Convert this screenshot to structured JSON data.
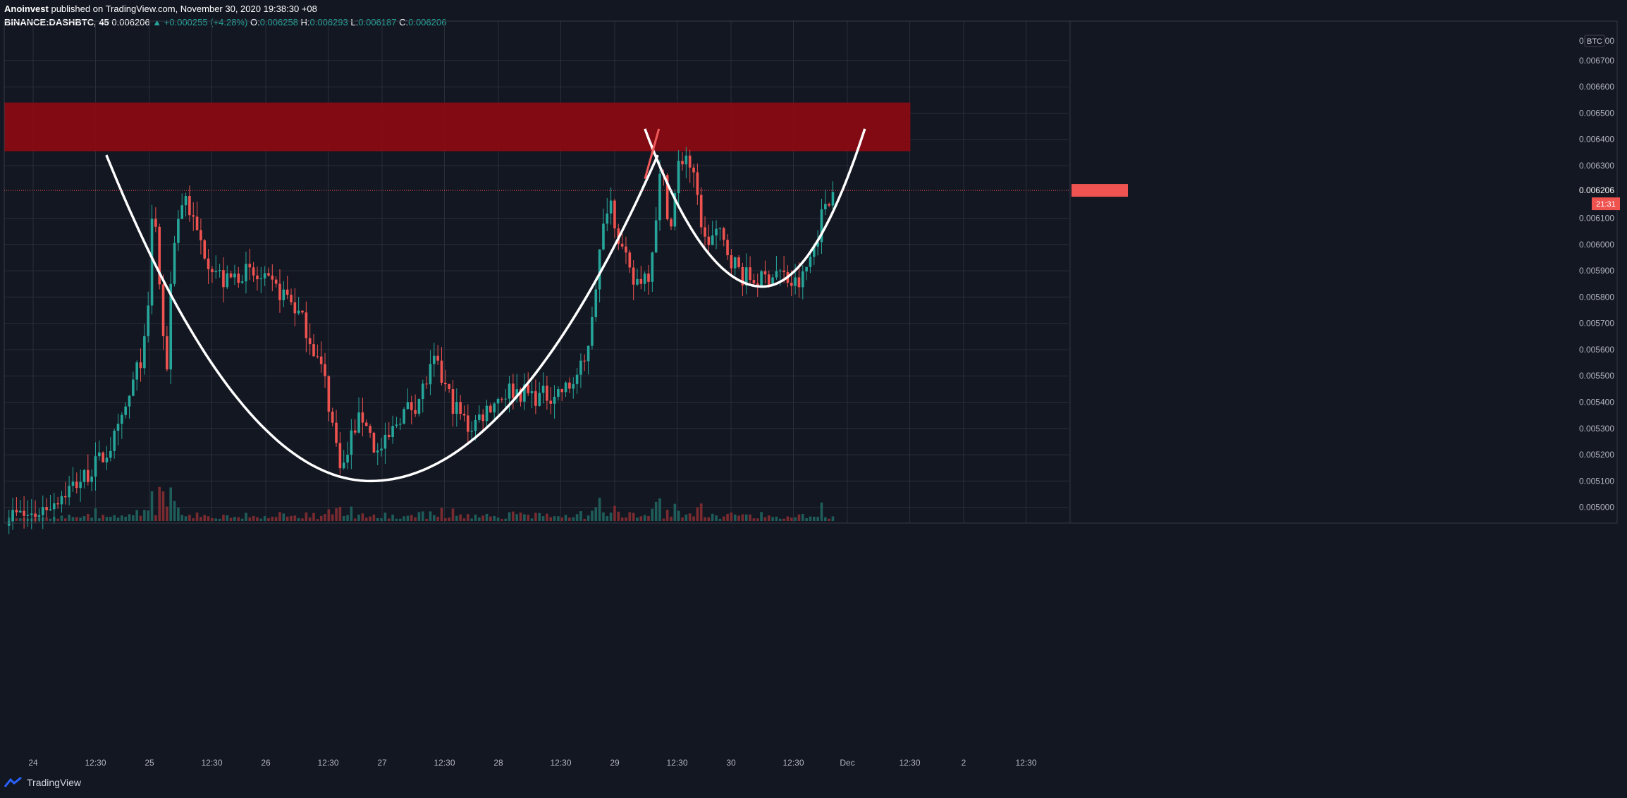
{
  "header": {
    "author": "Anoinvest",
    "published_text": "published on TradingView.com, November 30, 2020 19:38:30 +08",
    "symbol": "BINANCE:DASHBTC, 45",
    "last": "0.006206",
    "arrow": "▲",
    "change": "+0.000255 (+4.28%)",
    "o_label": "O:",
    "o_value": "0.006258",
    "h_label": "H:",
    "h_value": "0.006293",
    "l_label": "L:",
    "l_value": "0.006187",
    "c_label": "C:",
    "c_value": "0.006206"
  },
  "footer": {
    "brand": "TradingView"
  },
  "colors": {
    "background": "#131722",
    "grid": "#2a2e39",
    "up": "#26a69a",
    "down": "#ef5350",
    "volume_up": "#1e5d5a",
    "volume_down": "#7a2b30",
    "resistance_zone": "#8b0a12",
    "drawing": "#ffffff",
    "drawing_red": "#f05a5a",
    "price_tag": "#ef5350"
  },
  "chart_data": {
    "type": "candlestick",
    "currency_label": "BTC",
    "current_price_label": "0.006206",
    "countdown_label": "21:31",
    "top_partial_label": "0.006800",
    "y_ticks": [
      "0.006700",
      "0.006600",
      "0.006500",
      "0.006400",
      "0.006300",
      "0.006100",
      "0.006000",
      "0.005900",
      "0.005800",
      "0.005700",
      "0.005600",
      "0.005500",
      "0.005400",
      "0.005300",
      "0.005200",
      "0.005100",
      "0.005000"
    ],
    "x_ticks": [
      "24",
      "12:30",
      "25",
      "12:30",
      "26",
      "12:30",
      "27",
      "12:30",
      "28",
      "12:30",
      "29",
      "12:30",
      "30",
      "12:30",
      "Dec",
      "12:30",
      "2",
      "12:30"
    ],
    "ylim": [
      0.00494,
      0.00685
    ],
    "x_range_days": [
      "2020-11-24",
      "2020-12-02 12:30"
    ],
    "resistance_zone": {
      "from_price": 0.006355,
      "to_price": 0.00654,
      "end_date": "2020-12-01 13:00"
    },
    "candles_summary": {
      "open": 0.005,
      "high_peak_nov24": 0.0064,
      "low_nov26": 0.0051,
      "high_peak_nov29": 0.00644,
      "low_nov30": 0.00578,
      "last": 0.006206
    },
    "drawings": [
      {
        "type": "cup",
        "from": "2020-11-24 15:00",
        "bottom": "2020-11-26 22:00",
        "to": "2020-11-29 05:00",
        "top_price": 0.00634,
        "bottom_price": 0.0051
      },
      {
        "type": "handle",
        "from": "2020-11-29 05:00",
        "bottom": "2020-11-30 09:00",
        "to": "2020-11-30 22:00",
        "top_price": 0.00644,
        "bottom_price": 0.00584
      }
    ]
  }
}
